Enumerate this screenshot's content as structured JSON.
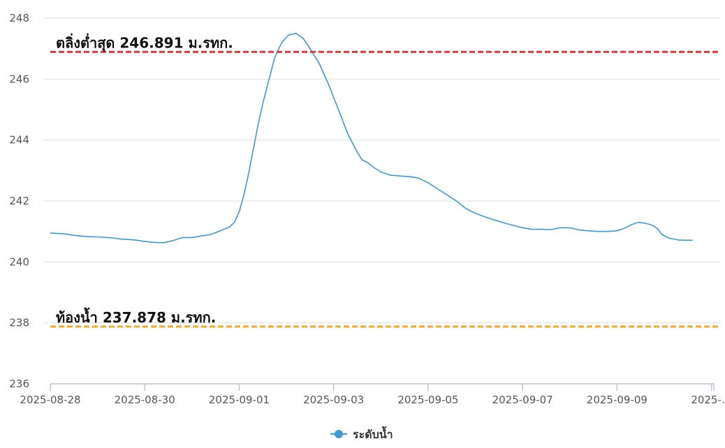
{
  "chart_data": {
    "type": "line",
    "title": "",
    "xlabel": "",
    "ylabel": "",
    "ylim": [
      236,
      248
    ],
    "y_ticks": [
      "248",
      "246",
      "244",
      "242",
      "240",
      "238",
      "236"
    ],
    "y_tick_values": [
      248,
      246,
      244,
      242,
      240,
      238,
      236
    ],
    "x_ticks": [
      "2025-08-28",
      "2025-08-30",
      "2025-09-01",
      "2025-09-03",
      "2025-09-05",
      "2025-09-07",
      "2025-09-09",
      "2025-…"
    ],
    "x_tick_days": [
      0,
      2,
      4,
      6,
      8,
      10,
      12,
      14
    ],
    "x_range_days": [
      0,
      14.05
    ],
    "grid": "horizontal",
    "legend": {
      "position": "bottom-center",
      "label": "ระดับน้ำ"
    },
    "colors": {
      "series": "#3a9ad9",
      "upper_ref": "#e53935",
      "lower_ref": "#f5a623",
      "grid": "#dddddd"
    },
    "reference_lines": [
      {
        "value": 246.891,
        "label": "ตลิ่งต่ำสุด 246.891 ม.รทก.",
        "color": "#e53935",
        "style": "dashed"
      },
      {
        "value": 237.878,
        "label": "ท้องน้ำ 237.878 ม.รทก.",
        "color": "#f5a623",
        "style": "dashed"
      }
    ],
    "series": [
      {
        "name": "ระดับน้ำ",
        "points": [
          [
            0.0,
            240.95
          ],
          [
            0.3,
            240.92
          ],
          [
            0.5,
            240.87
          ],
          [
            0.8,
            240.83
          ],
          [
            1.0,
            240.82
          ],
          [
            1.3,
            240.79
          ],
          [
            1.5,
            240.75
          ],
          [
            1.8,
            240.72
          ],
          [
            2.0,
            240.67
          ],
          [
            2.2,
            240.64
          ],
          [
            2.4,
            240.63
          ],
          [
            2.6,
            240.7
          ],
          [
            2.8,
            240.8
          ],
          [
            3.0,
            240.8
          ],
          [
            3.2,
            240.85
          ],
          [
            3.4,
            240.9
          ],
          [
            3.6,
            241.02
          ],
          [
            3.8,
            241.15
          ],
          [
            3.9,
            241.3
          ],
          [
            4.0,
            241.65
          ],
          [
            4.1,
            242.2
          ],
          [
            4.2,
            242.9
          ],
          [
            4.3,
            243.7
          ],
          [
            4.4,
            244.5
          ],
          [
            4.5,
            245.2
          ],
          [
            4.6,
            245.8
          ],
          [
            4.75,
            246.7
          ],
          [
            4.9,
            247.2
          ],
          [
            5.05,
            247.45
          ],
          [
            5.2,
            247.5
          ],
          [
            5.35,
            247.35
          ],
          [
            5.5,
            247.0
          ],
          [
            5.7,
            246.5
          ],
          [
            5.9,
            245.8
          ],
          [
            6.1,
            245.0
          ],
          [
            6.3,
            244.2
          ],
          [
            6.5,
            243.6
          ],
          [
            6.6,
            243.35
          ],
          [
            6.7,
            243.28
          ],
          [
            6.85,
            243.1
          ],
          [
            7.0,
            242.95
          ],
          [
            7.2,
            242.85
          ],
          [
            7.4,
            242.82
          ],
          [
            7.6,
            242.8
          ],
          [
            7.8,
            242.75
          ],
          [
            8.0,
            242.6
          ],
          [
            8.2,
            242.4
          ],
          [
            8.4,
            242.2
          ],
          [
            8.6,
            242.0
          ],
          [
            8.8,
            241.75
          ],
          [
            9.0,
            241.6
          ],
          [
            9.2,
            241.48
          ],
          [
            9.4,
            241.38
          ],
          [
            9.6,
            241.28
          ],
          [
            9.8,
            241.2
          ],
          [
            10.0,
            241.12
          ],
          [
            10.2,
            241.07
          ],
          [
            10.4,
            241.07
          ],
          [
            10.6,
            241.06
          ],
          [
            10.8,
            241.12
          ],
          [
            11.0,
            241.12
          ],
          [
            11.2,
            241.05
          ],
          [
            11.4,
            241.02
          ],
          [
            11.6,
            241.0
          ],
          [
            11.8,
            241.0
          ],
          [
            12.0,
            241.02
          ],
          [
            12.15,
            241.1
          ],
          [
            12.3,
            241.22
          ],
          [
            12.45,
            241.3
          ],
          [
            12.6,
            241.27
          ],
          [
            12.75,
            241.2
          ],
          [
            12.85,
            241.1
          ],
          [
            12.95,
            240.9
          ],
          [
            13.1,
            240.78
          ],
          [
            13.3,
            240.72
          ],
          [
            13.5,
            240.71
          ],
          [
            13.6,
            240.71
          ]
        ]
      }
    ]
  }
}
